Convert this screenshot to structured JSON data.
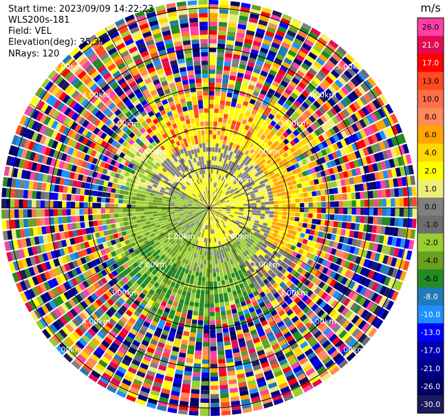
{
  "info": {
    "start_time": "Start time: 2023/09/09 14:22:23",
    "instrument": "WLS200s-181",
    "field": "Field: VEL",
    "elevation": "Elevation(deg): 35.30",
    "nrays": "NRays: 120"
  },
  "chart_data": {
    "type": "heatmap",
    "projection": "polar PPI",
    "field": "VEL",
    "rays": 120,
    "range_rings_km": [
      1.0,
      2.0,
      3.0,
      4.0,
      5.0
    ],
    "ring_labels": [
      "1.00km",
      "2.00km",
      "3.00km",
      "4.00km",
      "5.00km"
    ],
    "max_range_km": 5.2,
    "colorbar": {
      "unit": "m/s",
      "ticks": [
        "26.0",
        "21.0",
        "17.0",
        "13.0",
        "10.0",
        "8.0",
        "6.0",
        "4.0",
        "2.0",
        "1.0",
        "0.0",
        "-1.0",
        "-2.0",
        "-4.0",
        "-6.0",
        "-8.0",
        "-10.0",
        "-13.0",
        "-17.0",
        "-21.0",
        "-26.0",
        "-30.0"
      ],
      "colors": [
        "#ff3fa8",
        "#e60a52",
        "#ff0000",
        "#ff4a1f",
        "#ff6e4a",
        "#ff8a5a",
        "#ffa500",
        "#ffd700",
        "#ffff00",
        "#eeee77",
        "#808080",
        "#6e6e6e",
        "#9acd32",
        "#6aa020",
        "#228b22",
        "#1e7ab8",
        "#1e90ff",
        "#0000ff",
        "#0000aa",
        "#00008b",
        "#000066",
        "#1a1a5e"
      ]
    }
  }
}
